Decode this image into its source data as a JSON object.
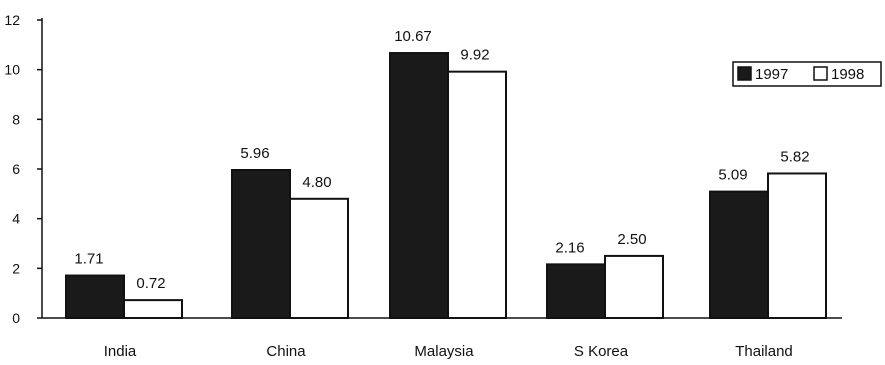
{
  "chart_data": {
    "type": "bar",
    "title": "",
    "xlabel": "",
    "ylabel": "",
    "categories": [
      "India",
      "China",
      "Malaysia",
      "S Korea",
      "Thailand"
    ],
    "series": [
      {
        "name": "1997",
        "values": [
          1.71,
          5.96,
          10.67,
          2.16,
          5.09
        ],
        "labels": [
          "1.71",
          "5.96",
          "10.67",
          "2.16",
          "5.09"
        ],
        "color": "#1a1a1a"
      },
      {
        "name": "1998",
        "values": [
          0.72,
          4.8,
          9.92,
          2.5,
          5.82
        ],
        "labels": [
          "0.72",
          "4.80",
          "9.92",
          "2.50",
          "5.82"
        ],
        "color": "#ffffff"
      }
    ],
    "ylim": [
      0,
      12
    ],
    "yticks": [
      "0",
      "2",
      "4",
      "6",
      "8",
      "10",
      "12"
    ],
    "grid": false,
    "legend_position": "top-right"
  }
}
